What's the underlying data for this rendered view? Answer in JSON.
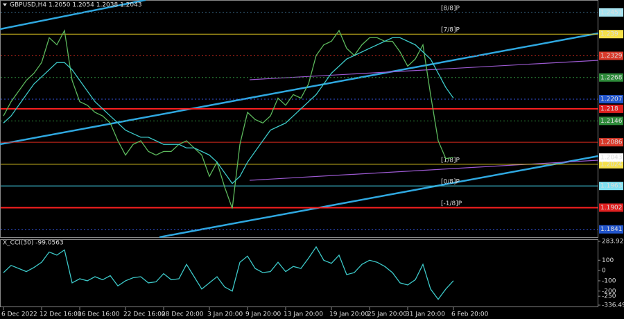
{
  "chart_data": [
    {
      "type": "line",
      "title": "GBPUSD,H4 1.2050 1.2054 1.2038 1.2043",
      "categories": [
        "6 Dec 2022",
        null,
        null,
        null,
        null,
        "12 Dec 16:00",
        null,
        null,
        null,
        null,
        "16 Dec 16:00",
        null,
        null,
        null,
        null,
        null,
        "22 Dec 16:00",
        null,
        null,
        null,
        null,
        "28 Dec 20:00",
        null,
        null,
        null,
        null,
        null,
        "3 Jan 20:00",
        null,
        null,
        null,
        null,
        "9 Jan 20:00",
        null,
        null,
        null,
        null,
        "13 Jan 20:00",
        null,
        null,
        null,
        null,
        null,
        "19 Jan 20:00",
        null,
        null,
        null,
        null,
        "25 Jan 20:00",
        null,
        null,
        null,
        null,
        "31 Jan 20:00",
        null,
        null,
        null,
        null,
        null,
        "6 Feb 20:00"
      ],
      "xlim": [
        0,
        78
      ],
      "ylim": [
        1.1819,
        1.2486
      ],
      "series": [
        {
          "color": "#5cb85c",
          "values": [
            1.216,
            1.22,
            1.223,
            1.226,
            1.228,
            1.231,
            1.238,
            1.236,
            1.24,
            1.226,
            1.22,
            1.219,
            1.217,
            1.216,
            1.214,
            1.209,
            1.205,
            1.208,
            1.209,
            1.206,
            1.205,
            1.206,
            1.206,
            1.208,
            1.209,
            1.207,
            1.205,
            1.199,
            1.203,
            1.196,
            1.19,
            1.208,
            1.217,
            1.215,
            1.214,
            1.216,
            1.221,
            1.219,
            1.222,
            1.221,
            1.225,
            1.233,
            1.236,
            1.237,
            1.24,
            1.235,
            1.233,
            1.236,
            1.238,
            1.238,
            1.237,
            1.237,
            1.234,
            1.23,
            1.232,
            1.236,
            1.222,
            1.209,
            1.204,
            1.2043
          ]
        },
        {
          "color": "#3cc8c8",
          "values": [
            1.214,
            1.216,
            1.219,
            1.222,
            1.225,
            1.227,
            1.229,
            1.231,
            1.231,
            1.229,
            1.226,
            1.223,
            1.22,
            1.218,
            1.216,
            1.214,
            1.212,
            1.211,
            1.21,
            1.21,
            1.209,
            1.208,
            1.208,
            1.208,
            1.207,
            1.207,
            1.206,
            1.205,
            1.203,
            1.2,
            1.197,
            1.199,
            1.203,
            1.206,
            1.209,
            1.212,
            1.213,
            1.214,
            1.216,
            1.218,
            1.22,
            1.222,
            1.225,
            1.228,
            1.23,
            1.232,
            1.233,
            1.234,
            1.235,
            1.236,
            1.237,
            1.238,
            1.238,
            1.237,
            1.236,
            1.234,
            1.232,
            1.228,
            1.224,
            1.221
          ]
        }
      ],
      "levels": [
        {
          "value": 1.2451,
          "color": "#a6e3f0",
          "line_color": "#3a6a8a",
          "style": "dotted",
          "label": "[8/8]P"
        },
        {
          "value": 1.239,
          "color": "#f5e14a",
          "line_color": "#d8c020",
          "style": "solid",
          "label": "[7/8]P"
        },
        {
          "value": 1.2329,
          "color": "#d93a2b",
          "line_color": "#c8281e",
          "style": "dotted"
        },
        {
          "value": 1.2268,
          "color": "#2e8b3a",
          "line_color": "#2e8b3a",
          "style": "dotted"
        },
        {
          "value": 1.2207,
          "color": "#2255cc",
          "line_color": "#3355dd",
          "style": "dotted"
        },
        {
          "value": 1.218,
          "color": "#e02020",
          "line_color": "#ff2020",
          "style": "solid"
        },
        {
          "value": 1.2146,
          "color": "#2e8b3a",
          "line_color": "#2e8b3a",
          "style": "dotted"
        },
        {
          "value": 1.2086,
          "color": "#d93a2b",
          "line_color": "#d82a1e",
          "style": "solid"
        },
        {
          "value": 1.2024,
          "color": "#f5e14a",
          "line_color": "#d8c020",
          "style": "solid",
          "label": "[1/8]P"
        },
        {
          "value": 1.1963,
          "color": "#7fe0f0",
          "line_color": "#40c8e0",
          "style": "solid",
          "label": "[0/8]P"
        },
        {
          "value": 1.1902,
          "color": "#e02020",
          "line_color": "#ff2020",
          "style": "solid",
          "label": "[-1/8]P"
        },
        {
          "value": 1.1841,
          "color": "#2255cc",
          "line_color": "#3355dd",
          "style": "dotted"
        }
      ],
      "last_price": 1.2043
    },
    {
      "type": "line",
      "title": "X_CCI(30) -99.0563",
      "ylim": [
        -336.4986,
        283.9211
      ],
      "yticks": [
        283.9211,
        100,
        0,
        -100,
        -200,
        -250,
        -336.4986
      ],
      "series": [
        {
          "color": "#3cc8c8",
          "values": [
            -20,
            50,
            20,
            -10,
            30,
            80,
            180,
            150,
            200,
            -120,
            -80,
            -100,
            -60,
            -90,
            -50,
            -150,
            -100,
            -70,
            -60,
            -120,
            -110,
            -30,
            -90,
            -80,
            60,
            -60,
            -180,
            -120,
            -60,
            -160,
            -200,
            80,
            140,
            20,
            -20,
            -10,
            80,
            -10,
            40,
            20,
            120,
            230,
            100,
            70,
            150,
            -40,
            -20,
            60,
            100,
            80,
            40,
            -20,
            -120,
            -140,
            -90,
            60,
            -180,
            -280,
            -180,
            -99.0563
          ]
        }
      ]
    }
  ]
}
